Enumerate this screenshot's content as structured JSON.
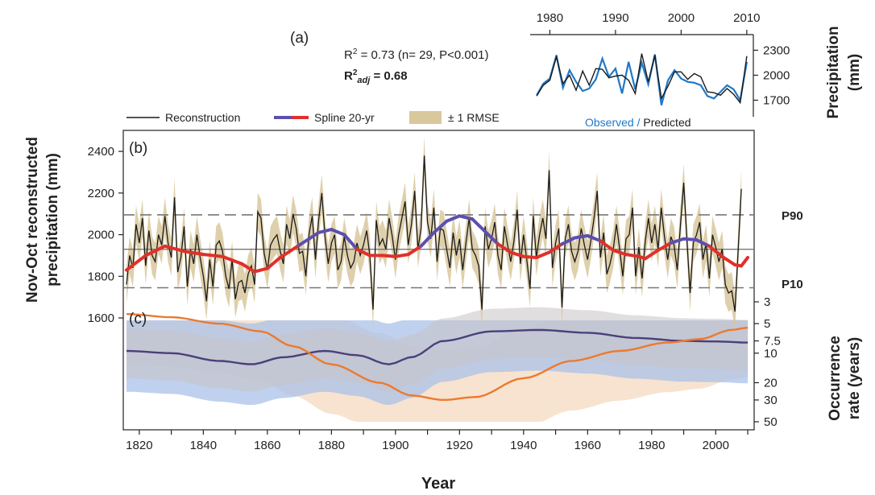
{
  "panel_a": {
    "label": "(a)",
    "stat1_prefix": "R",
    "stat1_sup": "2",
    "stat1_suffix": " = 0.73 (n= 29, P<0.001)",
    "stat2_prefix": "R",
    "stat2_sup": "2",
    "stat2_sub": "adj",
    "stat2_suffix": " = 0.68",
    "caption_observed": "Observed",
    "caption_sep": " / ",
    "caption_predicted": "Predicted",
    "ylabel_line1": "Precipitation",
    "ylabel_line2": "(mm)",
    "x_ticks": [
      "1980",
      "1990",
      "2000",
      "2010"
    ],
    "y_ticks": [
      "1700",
      "2000",
      "2300"
    ]
  },
  "panel_b": {
    "label": "(b)",
    "ylabel_line1": "Nov-Oct reconstructed",
    "ylabel_line2": "precipitation (mm)",
    "y_ticks": [
      "1600",
      "1800",
      "2000",
      "2200",
      "2400"
    ],
    "p90_label": "P90",
    "p10_label": "P10"
  },
  "panel_c": {
    "label": "(c)",
    "ylabel_line1": "Occurrence",
    "ylabel_line2": "rate (years)",
    "y_ticks": [
      "3",
      "5",
      "7.5",
      "10",
      "20",
      "30",
      "50"
    ]
  },
  "legend": {
    "reconstruction": "Reconstruction",
    "spline": "Spline 20-yr",
    "rmse": "± 1 RMSE"
  },
  "x_axis": {
    "title": "Year",
    "ticks": [
      "1820",
      "1840",
      "1860",
      "1880",
      "1900",
      "1920",
      "1940",
      "1960",
      "1980",
      "2000"
    ]
  },
  "colors": {
    "reconstruction": "#1a1a1a",
    "rmse_band": "#d9c89e",
    "spline_blue": "#5b4fb0",
    "spline_red": "#e0302a",
    "observed": "#1f78c8",
    "p90_band": "#a9c2e8",
    "p10_band": "#f4d9c0",
    "p90_line": "#4a3f7a",
    "p10_line": "#ec7a2e"
  },
  "chart_data": [
    {
      "type": "line",
      "panel": "a",
      "xlim": [
        1977,
        2011
      ],
      "ylim": [
        1550,
        2420
      ],
      "years": [
        1978,
        1979,
        1980,
        1981,
        1982,
        1983,
        1984,
        1985,
        1986,
        1987,
        1988,
        1989,
        1990,
        1991,
        1992,
        1993,
        1994,
        1995,
        1996,
        1997,
        1998,
        1999,
        2000,
        2001,
        2002,
        2003,
        2004,
        2005,
        2006,
        2007,
        2008,
        2009,
        2010
      ],
      "series": [
        {
          "name": "Observed",
          "values": [
            1760,
            1900,
            1960,
            2240,
            1850,
            2060,
            1920,
            1810,
            1840,
            1950,
            2200,
            1980,
            2080,
            1780,
            2160,
            1830,
            2150,
            1890,
            2250,
            1640,
            1940,
            2060,
            1960,
            1920,
            1910,
            1880,
            1750,
            1720,
            1800,
            1880,
            1830,
            1700,
            2160
          ]
        },
        {
          "name": "Predicted",
          "values": [
            1750,
            1880,
            1940,
            2220,
            1900,
            2000,
            1820,
            2050,
            1880,
            2080,
            2070,
            1970,
            1990,
            2000,
            1940,
            1780,
            2260,
            1920,
            2240,
            1720,
            1870,
            2040,
            2040,
            1950,
            2020,
            1980,
            1800,
            1790,
            1760,
            1840,
            1770,
            1670,
            2230
          ]
        }
      ]
    },
    {
      "type": "line",
      "panel": "b",
      "xlim": [
        1815,
        2012
      ],
      "ylim": [
        1600,
        2470
      ],
      "years_start": 1816,
      "reconstruction": [
        1760,
        1900,
        1840,
        2050,
        1960,
        2080,
        1850,
        2020,
        1900,
        1870,
        2000,
        1950,
        2090,
        1960,
        1890,
        2180,
        1820,
        1890,
        2040,
        1750,
        1930,
        1860,
        2000,
        1890,
        1800,
        1680,
        1880,
        1750,
        1950,
        1970,
        1920,
        1800,
        1740,
        1880,
        1690,
        1770,
        1780,
        1720,
        1810,
        1850,
        1760,
        2110,
        2080,
        1910,
        1830,
        1950,
        1980,
        2000,
        1920,
        1860,
        2050,
        1980,
        2100,
        2030,
        1910,
        1920,
        1800,
        2000,
        2090,
        1880,
        2070,
        2200,
        1990,
        1860,
        1960,
        2000,
        1830,
        1870,
        1990,
        1900,
        1840,
        1870,
        1960,
        1900,
        1950,
        2020,
        1900,
        1640,
        2070,
        1950,
        1980,
        1930,
        2080,
        1990,
        1880,
        2000,
        2080,
        2160,
        1950,
        2050,
        2210,
        1930,
        2030,
        2380,
        2060,
        1980,
        2130,
        1870,
        2030,
        2020,
        1930,
        1840,
        2010,
        1900,
        1980,
        1830,
        1960,
        2080,
        1930,
        1900,
        1850,
        1640,
        2040,
        1930,
        1980,
        2060,
        1900,
        1830,
        2040,
        1950,
        1870,
        1970,
        2120,
        1860,
        2000,
        1880,
        1740,
        2090,
        1890,
        2000,
        2080,
        1980,
        2310,
        1840,
        1960,
        2030,
        1650,
        1980,
        2050,
        1920,
        1870,
        1920,
        2030,
        1950,
        1880,
        1970,
        2080,
        2210,
        1890,
        2010,
        1810,
        1860,
        1930,
        2050,
        1930,
        1800,
        1980,
        2000,
        2130,
        1800,
        1940,
        1790,
        1970,
        2080,
        1960,
        2050,
        1930,
        2130,
        1990,
        1880,
        1990,
        1950,
        1830,
        2050,
        2250,
        1980,
        1720,
        1960,
        2000,
        2060,
        1880,
        1960,
        1790,
        2000,
        1940,
        1870,
        1930,
        1760,
        1720,
        1730,
        1630,
        1920,
        2220
      ],
      "spline": [
        [
          1816,
          1830
        ],
        [
          1822,
          1900
        ],
        [
          1828,
          1945
        ],
        [
          1834,
          1920
        ],
        [
          1840,
          1905
        ],
        [
          1846,
          1895
        ],
        [
          1852,
          1860
        ],
        [
          1856,
          1822
        ],
        [
          1860,
          1838
        ],
        [
          1864,
          1890
        ],
        [
          1870,
          1950
        ],
        [
          1876,
          2010
        ],
        [
          1880,
          2025
        ],
        [
          1884,
          2000
        ],
        [
          1888,
          1930
        ],
        [
          1892,
          1900
        ],
        [
          1896,
          1900
        ],
        [
          1900,
          1895
        ],
        [
          1904,
          1905
        ],
        [
          1908,
          1945
        ],
        [
          1912,
          2010
        ],
        [
          1916,
          2065
        ],
        [
          1920,
          2090
        ],
        [
          1924,
          2075
        ],
        [
          1928,
          2015
        ],
        [
          1932,
          1955
        ],
        [
          1936,
          1915
        ],
        [
          1940,
          1895
        ],
        [
          1944,
          1890
        ],
        [
          1948,
          1915
        ],
        [
          1952,
          1955
        ],
        [
          1956,
          1985
        ],
        [
          1960,
          1995
        ],
        [
          1964,
          1970
        ],
        [
          1968,
          1925
        ],
        [
          1972,
          1905
        ],
        [
          1976,
          1895
        ],
        [
          1978,
          1885
        ],
        [
          1982,
          1925
        ],
        [
          1986,
          1960
        ],
        [
          1990,
          1980
        ],
        [
          1994,
          1975
        ],
        [
          1998,
          1945
        ],
        [
          2002,
          1895
        ],
        [
          2006,
          1855
        ],
        [
          2008,
          1850
        ],
        [
          2010,
          1890
        ]
      ],
      "rmse": 90,
      "p90": 2095,
      "mean": 1930,
      "p10": 1745
    },
    {
      "type": "line",
      "panel": "c",
      "xlim": [
        1815,
        2012
      ],
      "series": [
        {
          "name": "P90",
          "values": [
            [
              1816,
              9.5
            ],
            [
              1830,
              10
            ],
            [
              1845,
              12
            ],
            [
              1855,
              13
            ],
            [
              1865,
              11
            ],
            [
              1878,
              9.5
            ],
            [
              1888,
              10.5
            ],
            [
              1898,
              13
            ],
            [
              1905,
              11
            ],
            [
              1915,
              7.5
            ],
            [
              1930,
              6
            ],
            [
              1945,
              5.8
            ],
            [
              1960,
              6.2
            ],
            [
              1975,
              7
            ],
            [
              1990,
              7.5
            ],
            [
              2000,
              7.6
            ],
            [
              2010,
              7.8
            ]
          ]
        },
        {
          "name": "P10",
          "values": [
            [
              1816,
              4
            ],
            [
              1830,
              4.3
            ],
            [
              1845,
              5
            ],
            [
              1858,
              6
            ],
            [
              1868,
              8.5
            ],
            [
              1880,
              13
            ],
            [
              1895,
              20
            ],
            [
              1905,
              27
            ],
            [
              1915,
              30
            ],
            [
              1925,
              28
            ],
            [
              1940,
              18
            ],
            [
              1955,
              12
            ],
            [
              1970,
              9.5
            ],
            [
              1985,
              7.8
            ],
            [
              1995,
              7.2
            ],
            [
              2005,
              5.8
            ],
            [
              2010,
              5.5
            ]
          ]
        }
      ]
    }
  ]
}
